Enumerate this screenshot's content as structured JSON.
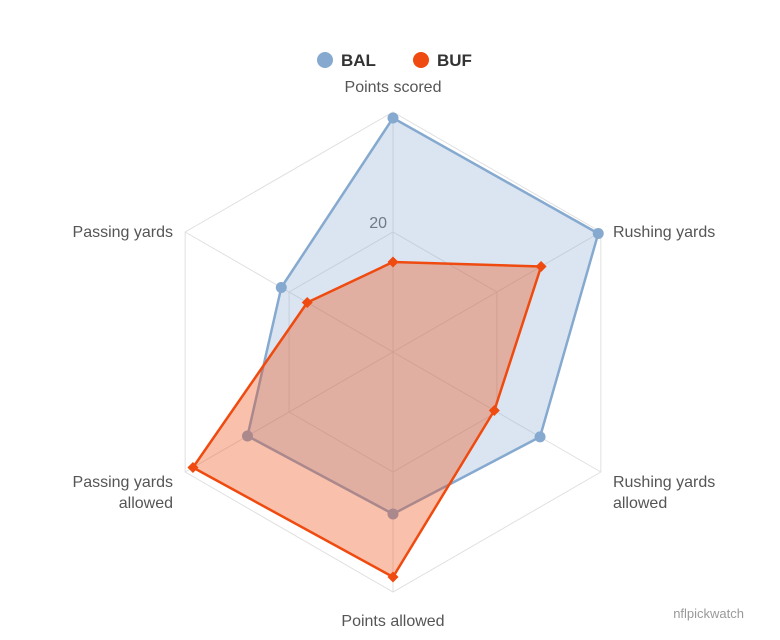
{
  "chart_data": {
    "type": "radar",
    "axes": [
      "Points scored",
      "Rushing yards",
      "Rushing yards allowed",
      "Points allowed",
      "Passing yards allowed",
      "Passing yards"
    ],
    "axis_label_lines": [
      [
        "Points scored"
      ],
      [
        "Rushing yards"
      ],
      [
        "Rushing yards",
        "allowed"
      ],
      [
        "Points allowed"
      ],
      [
        "Passing yards",
        "allowed"
      ],
      [
        "Passing yards"
      ]
    ],
    "tick_labels": [
      "20"
    ],
    "ticks": [
      20
    ],
    "r_max": 40,
    "series": [
      {
        "name": "BAL",
        "color": "#86a9cf",
        "marker": "circle",
        "values": [
          39,
          39.5,
          28.3,
          27,
          28,
          21.5
        ]
      },
      {
        "name": "BUF",
        "color": "#ef4a0f",
        "marker": "diamond",
        "values": [
          15,
          28.5,
          19.5,
          37.5,
          38.5,
          16.5
        ]
      }
    ],
    "legend_position": "top-center",
    "grid": true
  },
  "credit": "nflpickwatch"
}
